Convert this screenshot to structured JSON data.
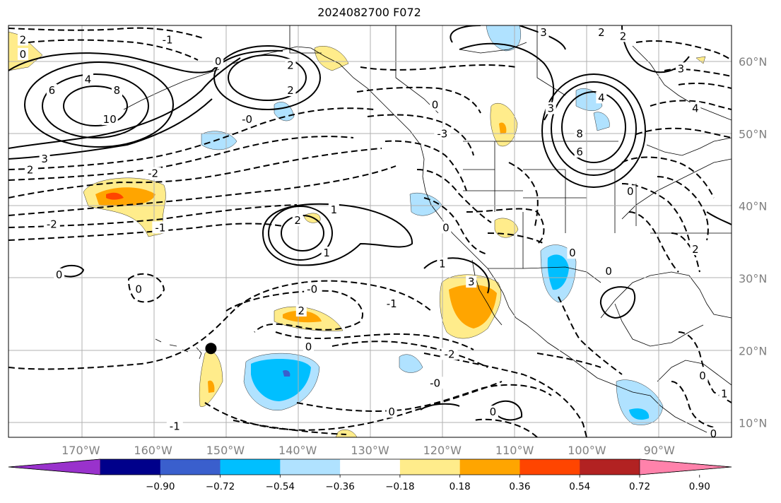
{
  "title": "2024082700 F072",
  "map": {
    "lon_ticks": [
      "170°W",
      "160°W",
      "150°W",
      "140°W",
      "130°W",
      "120°W",
      "110°W",
      "100°W",
      "90°W"
    ],
    "lat_ticks": [
      "60°N",
      "50°N",
      "40°N",
      "30°N",
      "20°N",
      "10°N"
    ],
    "lon_range": [
      -180,
      -80
    ],
    "lat_range": [
      8,
      65
    ],
    "marker": {
      "name": "black-dot",
      "lon": -152,
      "lat": 20.3
    }
  },
  "colorbar": {
    "colors": [
      "#9932cc",
      "#00008b",
      "#3a5fcd",
      "#00bfff",
      "#b0e2ff",
      "#ffffff",
      "#ffec8b",
      "#ffa500",
      "#ff4500",
      "#b22222",
      "#ff82ab"
    ],
    "labels": [
      "−0.90",
      "−0.72",
      "−0.54",
      "−0.36",
      "−0.18",
      "0.18",
      "0.36",
      "0.54",
      "0.72",
      "0.90"
    ]
  },
  "contour_labels": [
    {
      "t": "2",
      "lon": -178,
      "lat": 63
    },
    {
      "t": "0",
      "lon": -178,
      "lat": 61
    },
    {
      "t": "-1",
      "lon": -158,
      "lat": 63
    },
    {
      "t": "4",
      "lon": -169,
      "lat": 57.5
    },
    {
      "t": "6",
      "lon": -174,
      "lat": 56
    },
    {
      "t": "8",
      "lon": -165,
      "lat": 56
    },
    {
      "t": "10",
      "lon": -166,
      "lat": 52
    },
    {
      "t": "3",
      "lon": -175,
      "lat": 46.5
    },
    {
      "t": "2",
      "lon": -177,
      "lat": 45
    },
    {
      "t": "0",
      "lon": -151,
      "lat": 60
    },
    {
      "t": "2",
      "lon": -141,
      "lat": 59.5
    },
    {
      "t": "2",
      "lon": -141,
      "lat": 56
    },
    {
      "t": "-0",
      "lon": -147,
      "lat": 52
    },
    {
      "t": "-2",
      "lon": -160,
      "lat": 44.5
    },
    {
      "t": "-2",
      "lon": -174,
      "lat": 37.5
    },
    {
      "t": "-1",
      "lon": -159,
      "lat": 37
    },
    {
      "t": "1",
      "lon": -135,
      "lat": 39.5
    },
    {
      "t": "2",
      "lon": -140,
      "lat": 38
    },
    {
      "t": "1",
      "lon": -136,
      "lat": 33.5
    },
    {
      "t": "0",
      "lon": -173,
      "lat": 30.5
    },
    {
      "t": "0",
      "lon": -162,
      "lat": 28.5
    },
    {
      "t": "-0",
      "lon": -138,
      "lat": 28.5
    },
    {
      "t": "2",
      "lon": -139.5,
      "lat": 25.5
    },
    {
      "t": "-1",
      "lon": -127,
      "lat": 26.5
    },
    {
      "t": "0",
      "lon": -138.5,
      "lat": 20.5
    },
    {
      "t": "-2",
      "lon": -119,
      "lat": 19.5
    },
    {
      "t": "-0",
      "lon": -121,
      "lat": 15.5
    },
    {
      "t": "0",
      "lon": -127,
      "lat": 11.5
    },
    {
      "t": "0",
      "lon": -113,
      "lat": 11.5
    },
    {
      "t": "-1",
      "lon": -157,
      "lat": 9.5
    },
    {
      "t": "0",
      "lon": -121,
      "lat": 54
    },
    {
      "t": "-3",
      "lon": -120,
      "lat": 50
    },
    {
      "t": "0",
      "lon": -119.5,
      "lat": 37
    },
    {
      "t": "1",
      "lon": -120,
      "lat": 32
    },
    {
      "t": "3",
      "lon": -116,
      "lat": 29.5
    },
    {
      "t": "3",
      "lon": -106,
      "lat": 64
    },
    {
      "t": "2",
      "lon": -98,
      "lat": 64
    },
    {
      "t": "2",
      "lon": -95,
      "lat": 63.5
    },
    {
      "t": "3",
      "lon": -105,
      "lat": 53.5
    },
    {
      "t": "4",
      "lon": -98,
      "lat": 55
    },
    {
      "t": "8",
      "lon": -101,
      "lat": 50
    },
    {
      "t": "6",
      "lon": -101,
      "lat": 47.5
    },
    {
      "t": "0",
      "lon": -102,
      "lat": 33.5
    },
    {
      "t": "0",
      "lon": -97,
      "lat": 31
    },
    {
      "t": "3",
      "lon": -87,
      "lat": 59
    },
    {
      "t": "4",
      "lon": -85,
      "lat": 53.5
    },
    {
      "t": "0",
      "lon": -94,
      "lat": 42
    },
    {
      "t": "2",
      "lon": -85,
      "lat": 34
    },
    {
      "t": "0",
      "lon": -84,
      "lat": 16.5
    },
    {
      "t": "1",
      "lon": -81,
      "lat": 14
    },
    {
      "t": "0",
      "lon": -82.5,
      "lat": 8.5
    },
    {
      "t": "2",
      "lon": -79.5,
      "lat": 27
    }
  ]
}
